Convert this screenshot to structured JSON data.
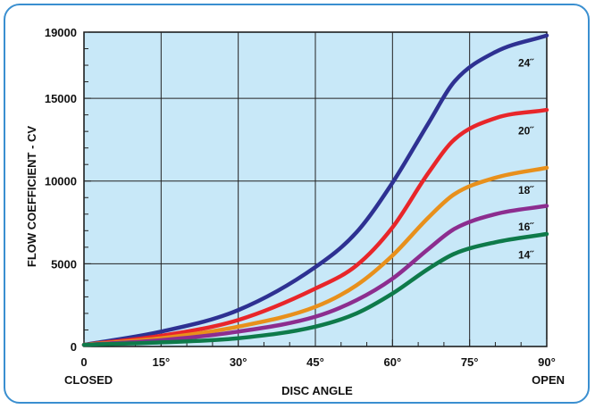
{
  "chart_data": {
    "type": "line",
    "title": "",
    "xlabel": "DISC ANGLE",
    "ylabel": "FLOW COEFFICIENT - CV",
    "xlim": [
      0,
      90
    ],
    "ylim": [
      0,
      19000
    ],
    "grid": true,
    "plot_background": "#c8e8f8",
    "x_ticks": [
      {
        "value": 0,
        "label": "0"
      },
      {
        "value": 15,
        "label": "15°"
      },
      {
        "value": 30,
        "label": "30°"
      },
      {
        "value": 45,
        "label": "45°"
      },
      {
        "value": 60,
        "label": "60°"
      },
      {
        "value": 75,
        "label": "75°"
      },
      {
        "value": 90,
        "label": "90°"
      }
    ],
    "y_ticks": [
      {
        "value": 0,
        "label": "0"
      },
      {
        "value": 5000,
        "label": "5000"
      },
      {
        "value": 10000,
        "label": "10000"
      },
      {
        "value": 15000,
        "label": "15000"
      },
      {
        "value": 19000,
        "label": "19000"
      }
    ],
    "x_end_labels": {
      "left": "CLOSED",
      "right": "OPEN"
    },
    "series": [
      {
        "name": "24˝",
        "color": "#2e3192",
        "x": [
          0,
          15,
          30,
          45,
          53,
          60,
          67,
          72,
          80,
          90
        ],
        "y": [
          100,
          900,
          2200,
          4800,
          6900,
          9900,
          13500,
          16000,
          17800,
          18800
        ]
      },
      {
        "name": "20˝",
        "color": "#e8262a",
        "x": [
          0,
          15,
          30,
          45,
          53,
          60,
          67,
          72,
          80,
          90
        ],
        "y": [
          100,
          650,
          1600,
          3500,
          4900,
          7200,
          10500,
          12500,
          13800,
          14300
        ]
      },
      {
        "name": "18˝",
        "color": "#e8901c",
        "x": [
          0,
          15,
          30,
          45,
          53,
          60,
          67,
          72,
          80,
          90
        ],
        "y": [
          100,
          500,
          1200,
          2400,
          3700,
          5500,
          7800,
          9200,
          10200,
          10800
        ]
      },
      {
        "name": "16˝",
        "color": "#8c2d8f",
        "x": [
          0,
          15,
          30,
          45,
          53,
          60,
          67,
          72,
          80,
          90
        ],
        "y": [
          100,
          380,
          900,
          1800,
          2800,
          4100,
          5900,
          7100,
          8000,
          8500
        ]
      },
      {
        "name": "14˝",
        "color": "#0e7a4a",
        "x": [
          0,
          15,
          30,
          45,
          53,
          60,
          67,
          72,
          80,
          90
        ],
        "y": [
          100,
          250,
          500,
          1200,
          2000,
          3200,
          4700,
          5600,
          6300,
          6800
        ]
      }
    ]
  }
}
